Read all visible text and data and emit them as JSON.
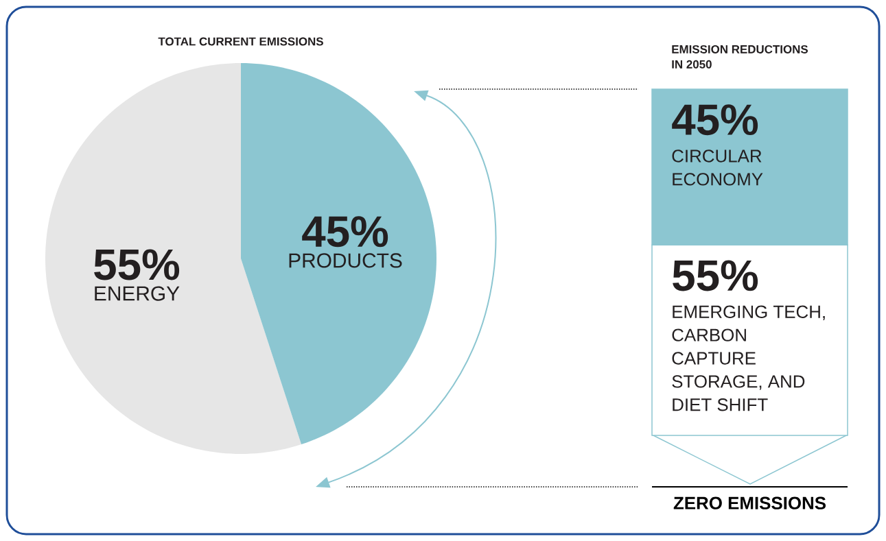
{
  "chart_data": [
    {
      "type": "pie",
      "title": "TOTAL CURRENT EMISSIONS",
      "categories": [
        "ENERGY",
        "PRODUCTS"
      ],
      "values": [
        55,
        45
      ],
      "colors": [
        "#e6e6e6",
        "#8cc6d1"
      ],
      "value_labels": [
        "55%",
        "45%"
      ]
    },
    {
      "type": "bar",
      "stacked": true,
      "title": "EMISSION REDUCTIONS IN 2050",
      "categories": [
        null
      ],
      "series": [
        {
          "name": "EMERGING TECH, CARBON CAPTURE STORAGE, AND DIET SHIFT",
          "color": "#ffffff",
          "values": [
            55
          ],
          "value_labels": [
            "55%"
          ]
        },
        {
          "name": "CIRCULAR ECONOMY",
          "color": "#8cc6d1",
          "values": [
            45
          ],
          "value_labels": [
            "45%"
          ]
        }
      ],
      "annotations": [
        "ZERO EMISSIONS"
      ]
    }
  ]
}
